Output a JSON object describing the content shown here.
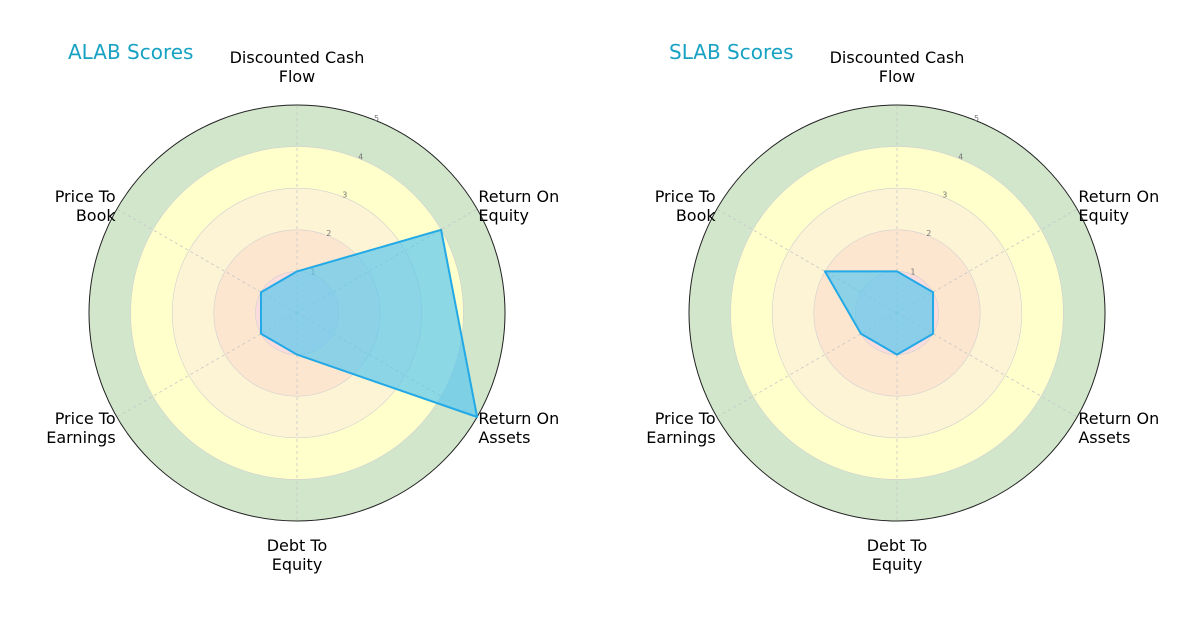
{
  "chart_data": [
    {
      "type": "radar",
      "title": "ALAB Scores",
      "axes": [
        [
          "Discounted Cash",
          "Flow"
        ],
        [
          "Return On",
          "Equity"
        ],
        [
          "Return On",
          "Assets"
        ],
        [
          "Debt To",
          "Equity"
        ],
        [
          "Price To",
          "Earnings"
        ],
        [
          "Price To",
          "Book"
        ]
      ],
      "values": [
        1,
        4,
        5,
        1,
        1,
        1
      ],
      "rlim": [
        0,
        5
      ],
      "ticks": [
        "1",
        "2",
        "3",
        "4",
        "5"
      ]
    },
    {
      "type": "radar",
      "title": "SLAB Scores",
      "axes": [
        [
          "Discounted Cash",
          "Flow"
        ],
        [
          "Return On",
          "Equity"
        ],
        [
          "Return On",
          "Assets"
        ],
        [
          "Debt To",
          "Equity"
        ],
        [
          "Price To",
          "Earnings"
        ],
        [
          "Price To",
          "Book"
        ]
      ],
      "values": [
        1,
        1,
        1,
        1,
        1,
        2
      ],
      "rlim": [
        0,
        5
      ],
      "ticks": [
        "1",
        "2",
        "3",
        "4",
        "5"
      ]
    }
  ],
  "colors": {
    "title": "#17a2c4",
    "series_fill": "#5bc8ee",
    "series_stroke": "#23a9e6",
    "band_1": "#fcdcdc",
    "band_2": "#fde6cf",
    "band_3": "#fdf4d5",
    "band_4": "#ffffcc",
    "band_5": "#d1e6cb"
  }
}
